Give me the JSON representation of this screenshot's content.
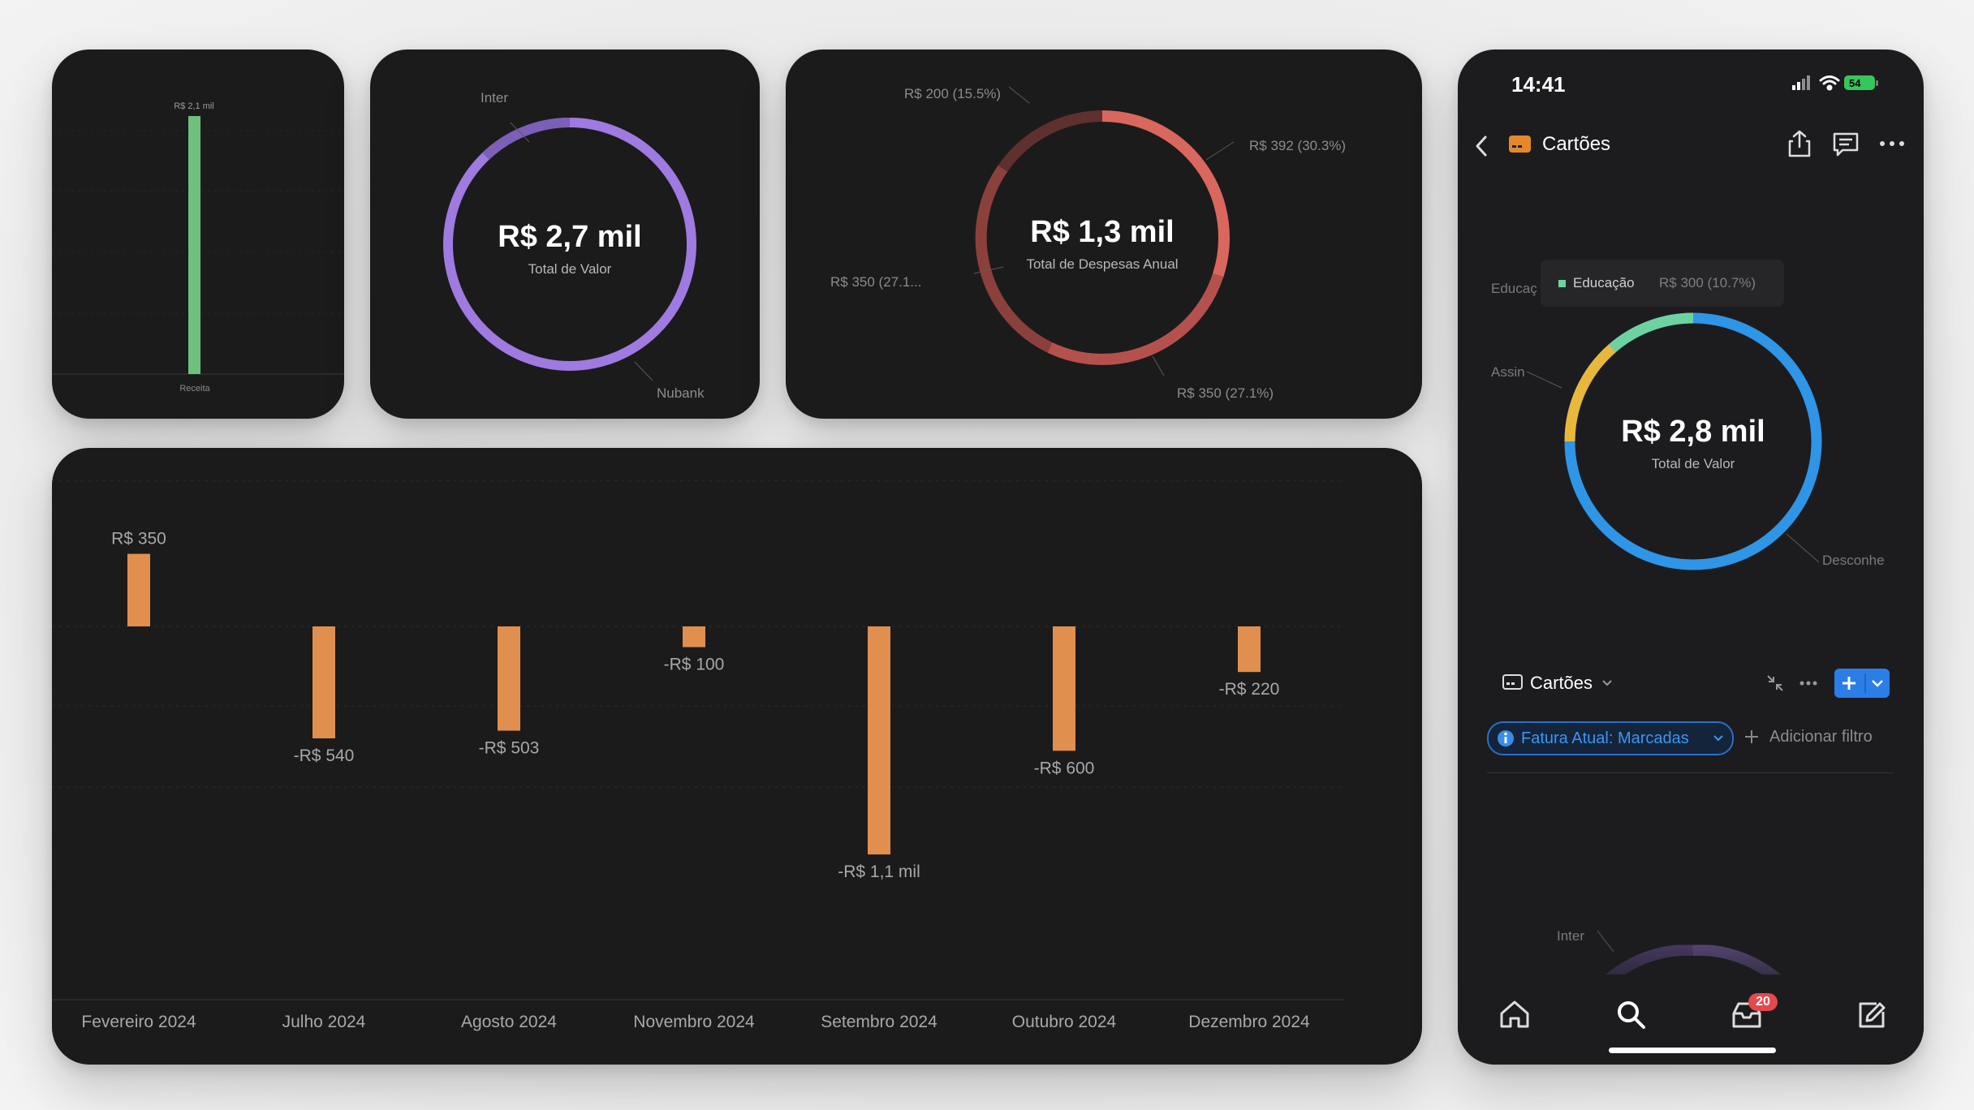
{
  "card_receita": {
    "bar_label": "R$ 2,1 mil",
    "category": "Receita",
    "bar_color": "#6fbf7f",
    "value": 2100
  },
  "card_accounts": {
    "center_value": "R$ 2,7 mil",
    "center_caption": "Total de Valor",
    "label_inter": "Inter",
    "label_nubank": "Nubank",
    "colors": {
      "nubank": "#9f7ae0",
      "inter": "#7b5fb8"
    },
    "slices": [
      {
        "name": "Nubank",
        "fraction": 0.87
      },
      {
        "name": "Inter",
        "fraction": 0.13
      }
    ]
  },
  "card_expenses": {
    "center_value": "R$ 1,3 mil",
    "center_caption": "Total de Despesas Anual",
    "labels": {
      "top_left": "R$ 200 (15.5%)",
      "top_right": "R$ 392 (30.3%)",
      "left": "R$ 350 (27.1...",
      "bottom_right": "R$ 350 (27.1%)"
    },
    "slices": [
      {
        "value": 392,
        "percent": 30.3,
        "color": "#d9675e"
      },
      {
        "value": 350,
        "percent": 27.1,
        "color": "#b5514d"
      },
      {
        "value": 350,
        "percent": 27.1,
        "color": "#8c403c"
      },
      {
        "value": 200,
        "percent": 15.5,
        "color": "#5e302e"
      }
    ]
  },
  "chart_data": {
    "type": "bar",
    "categories": [
      "Fevereiro 2024",
      "Julho 2024",
      "Agosto 2024",
      "Novembro 2024",
      "Setembro 2024",
      "Outubro 2024",
      "Dezembro 2024"
    ],
    "values": [
      350,
      -540,
      -503,
      -100,
      -1100,
      -600,
      -220
    ],
    "value_labels": [
      "R$ 350",
      "-R$ 540",
      "-R$ 503",
      "-R$ 100",
      "-R$ 1,1 mil",
      "-R$ 600",
      "-R$ 220"
    ],
    "ylim": [
      -1200,
      400
    ],
    "grid": true,
    "color": "#e08f4f"
  },
  "phone": {
    "time": "14:41",
    "battery": "54",
    "nav_title": "Cartões",
    "donut": {
      "center_value": "R$ 2,8 mil",
      "center_caption": "Total de Valor",
      "tooltip_name": "Educação",
      "tooltip_value": "R$ 300 (10.7%)",
      "label_educacao": "Educaç",
      "label_assin": "Assin",
      "label_desconhe": "Desconhe",
      "colors": {
        "blue": "#2f95e6",
        "yellow": "#e7b83a",
        "green": "#6cd3a0"
      },
      "slices": [
        {
          "name": "Desconhe",
          "fraction": 0.69
        },
        {
          "name": "Assin",
          "fraction": 0.2
        },
        {
          "name": "Educação",
          "fraction": 0.107
        }
      ]
    },
    "section_title": "Cartões",
    "filter_label": "Fatura Atual: Marcadas",
    "add_filter": "Adicionar filtro",
    "mini_label_inter": "Inter",
    "inbox_badge": "20"
  }
}
